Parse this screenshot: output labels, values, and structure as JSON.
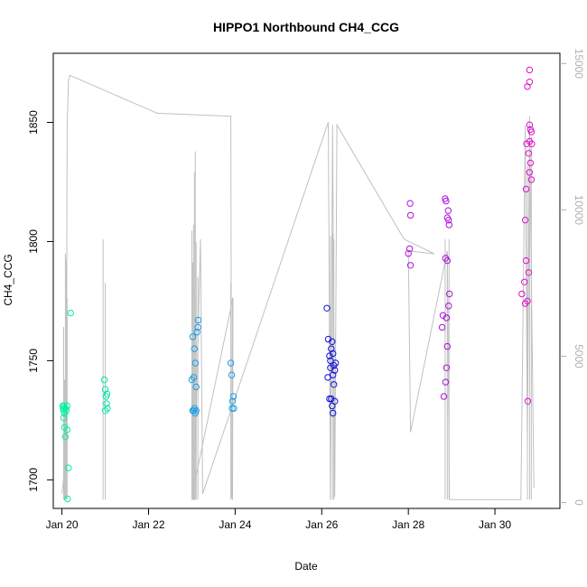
{
  "chart_data": {
    "type": "scatter",
    "title": "HIPPO1 Northbound CH4_CCG",
    "xlabel": "Date",
    "ylabel": "CH4_CCG",
    "xlim": [
      19.8,
      31.5
    ],
    "ylim": [
      1688,
      1879
    ],
    "x_ticks": [
      {
        "value": 20,
        "label": "Jan 20"
      },
      {
        "value": 22,
        "label": "Jan 22"
      },
      {
        "value": 24,
        "label": "Jan 24"
      },
      {
        "value": 26,
        "label": "Jan 26"
      },
      {
        "value": 28,
        "label": "Jan 28"
      },
      {
        "value": 30,
        "label": "Jan 30"
      }
    ],
    "y_ticks": [
      1700,
      1750,
      1800,
      1850
    ],
    "y2_ticks": [
      0,
      5000,
      10000,
      15000
    ],
    "y2_color": "#b0b0b0",
    "y2lim": [
      -200,
      15350
    ],
    "grid": false,
    "legend": "none",
    "points": [
      {
        "x": 20.02,
        "y": 1731,
        "color": "#00f0a0"
      },
      {
        "x": 20.03,
        "y": 1730,
        "color": "#00f0a0"
      },
      {
        "x": 20.04,
        "y": 1729,
        "color": "#00f0a0"
      },
      {
        "x": 20.05,
        "y": 1731,
        "color": "#00f0a0"
      },
      {
        "x": 20.06,
        "y": 1728,
        "color": "#00f0a0"
      },
      {
        "x": 20.08,
        "y": 1730,
        "color": "#00f0a0"
      },
      {
        "x": 20.1,
        "y": 1729,
        "color": "#00f0a0"
      },
      {
        "x": 20.12,
        "y": 1731,
        "color": "#00f0a0"
      },
      {
        "x": 20.04,
        "y": 1726,
        "color": "#00f0a0"
      },
      {
        "x": 20.06,
        "y": 1722,
        "color": "#00f0a0"
      },
      {
        "x": 20.08,
        "y": 1718,
        "color": "#00f0a0"
      },
      {
        "x": 20.12,
        "y": 1721,
        "color": "#00f0a0"
      },
      {
        "x": 20.15,
        "y": 1705,
        "color": "#00f0a0"
      },
      {
        "x": 20.13,
        "y": 1692,
        "color": "#00f0a0"
      },
      {
        "x": 20.2,
        "y": 1770,
        "color": "#00f0a0"
      },
      {
        "x": 20.98,
        "y": 1742,
        "color": "#00e8a8"
      },
      {
        "x": 21.0,
        "y": 1738,
        "color": "#00e8a8"
      },
      {
        "x": 21.02,
        "y": 1735,
        "color": "#00e8a8"
      },
      {
        "x": 21.04,
        "y": 1736,
        "color": "#00e8a8"
      },
      {
        "x": 21.03,
        "y": 1732,
        "color": "#00e8a8"
      },
      {
        "x": 21.0,
        "y": 1729,
        "color": "#00e8a8"
      },
      {
        "x": 21.05,
        "y": 1730,
        "color": "#00e8a8"
      },
      {
        "x": 23.0,
        "y": 1742,
        "color": "#1aa0e8"
      },
      {
        "x": 23.02,
        "y": 1760,
        "color": "#1aa0e8"
      },
      {
        "x": 23.04,
        "y": 1743,
        "color": "#1aa0e8"
      },
      {
        "x": 23.06,
        "y": 1730,
        "color": "#1aa0e8"
      },
      {
        "x": 23.08,
        "y": 1728,
        "color": "#1aa0e8"
      },
      {
        "x": 23.04,
        "y": 1729,
        "color": "#1aa0e8"
      },
      {
        "x": 23.02,
        "y": 1729,
        "color": "#1aa0e8"
      },
      {
        "x": 23.1,
        "y": 1729,
        "color": "#1aa0e8"
      },
      {
        "x": 23.08,
        "y": 1749,
        "color": "#1aa0e8"
      },
      {
        "x": 23.06,
        "y": 1755,
        "color": "#1aa0e8"
      },
      {
        "x": 23.1,
        "y": 1739,
        "color": "#1aa0e8"
      },
      {
        "x": 23.12,
        "y": 1762,
        "color": "#1aa0e8"
      },
      {
        "x": 23.14,
        "y": 1764,
        "color": "#1aa0e8"
      },
      {
        "x": 23.15,
        "y": 1767,
        "color": "#1aa0e8"
      },
      {
        "x": 23.9,
        "y": 1749,
        "color": "#1aa0e8"
      },
      {
        "x": 23.92,
        "y": 1744,
        "color": "#1aa0e8"
      },
      {
        "x": 23.94,
        "y": 1733,
        "color": "#1aa0e8"
      },
      {
        "x": 23.96,
        "y": 1735,
        "color": "#1aa0e8"
      },
      {
        "x": 23.93,
        "y": 1730,
        "color": "#1aa0e8"
      },
      {
        "x": 23.97,
        "y": 1730,
        "color": "#1aa0e8"
      },
      {
        "x": 26.12,
        "y": 1772,
        "color": "#1010d8"
      },
      {
        "x": 26.15,
        "y": 1759,
        "color": "#1010d8"
      },
      {
        "x": 26.18,
        "y": 1752,
        "color": "#1010d8"
      },
      {
        "x": 26.2,
        "y": 1750,
        "color": "#1010d8"
      },
      {
        "x": 26.22,
        "y": 1755,
        "color": "#1010d8"
      },
      {
        "x": 26.24,
        "y": 1758,
        "color": "#1010d8"
      },
      {
        "x": 26.26,
        "y": 1753,
        "color": "#1010d8"
      },
      {
        "x": 26.14,
        "y": 1743,
        "color": "#1010d8"
      },
      {
        "x": 26.2,
        "y": 1747,
        "color": "#1010d8"
      },
      {
        "x": 26.28,
        "y": 1748,
        "color": "#1010d8"
      },
      {
        "x": 26.3,
        "y": 1746,
        "color": "#1010d8"
      },
      {
        "x": 26.32,
        "y": 1749,
        "color": "#1010d8"
      },
      {
        "x": 26.26,
        "y": 1744,
        "color": "#1010d8"
      },
      {
        "x": 26.28,
        "y": 1740,
        "color": "#1010d8"
      },
      {
        "x": 26.18,
        "y": 1734,
        "color": "#1010d8"
      },
      {
        "x": 26.22,
        "y": 1734,
        "color": "#1010d8"
      },
      {
        "x": 26.24,
        "y": 1731,
        "color": "#1010d8"
      },
      {
        "x": 26.26,
        "y": 1728,
        "color": "#1010d8"
      },
      {
        "x": 26.3,
        "y": 1733,
        "color": "#1010d8"
      },
      {
        "x": 28.0,
        "y": 1795,
        "color": "#b010e0"
      },
      {
        "x": 28.04,
        "y": 1816,
        "color": "#b010e0"
      },
      {
        "x": 28.05,
        "y": 1811,
        "color": "#b010e0"
      },
      {
        "x": 28.03,
        "y": 1797,
        "color": "#b010e0"
      },
      {
        "x": 28.05,
        "y": 1790,
        "color": "#b010e0"
      },
      {
        "x": 28.78,
        "y": 1764,
        "color": "#b010e0"
      },
      {
        "x": 28.8,
        "y": 1769,
        "color": "#b010e0"
      },
      {
        "x": 28.82,
        "y": 1735,
        "color": "#b010e0"
      },
      {
        "x": 28.85,
        "y": 1818,
        "color": "#b010e0"
      },
      {
        "x": 28.87,
        "y": 1817,
        "color": "#b010e0"
      },
      {
        "x": 28.9,
        "y": 1810,
        "color": "#b010e0"
      },
      {
        "x": 28.92,
        "y": 1813,
        "color": "#b010e0"
      },
      {
        "x": 28.94,
        "y": 1807,
        "color": "#b010e0"
      },
      {
        "x": 28.93,
        "y": 1809,
        "color": "#b010e0"
      },
      {
        "x": 28.86,
        "y": 1793,
        "color": "#b010e0"
      },
      {
        "x": 28.9,
        "y": 1792,
        "color": "#b010e0"
      },
      {
        "x": 28.95,
        "y": 1778,
        "color": "#b010e0"
      },
      {
        "x": 28.93,
        "y": 1773,
        "color": "#b010e0"
      },
      {
        "x": 28.88,
        "y": 1768,
        "color": "#b010e0"
      },
      {
        "x": 28.9,
        "y": 1756,
        "color": "#b010e0"
      },
      {
        "x": 28.88,
        "y": 1747,
        "color": "#b010e0"
      },
      {
        "x": 28.86,
        "y": 1741,
        "color": "#b010e0"
      },
      {
        "x": 30.62,
        "y": 1778,
        "color": "#e010d0"
      },
      {
        "x": 30.68,
        "y": 1783,
        "color": "#e010d0"
      },
      {
        "x": 30.7,
        "y": 1774,
        "color": "#e010d0"
      },
      {
        "x": 30.75,
        "y": 1775,
        "color": "#e010d0"
      },
      {
        "x": 30.72,
        "y": 1792,
        "color": "#e010d0"
      },
      {
        "x": 30.7,
        "y": 1809,
        "color": "#e010d0"
      },
      {
        "x": 30.72,
        "y": 1822,
        "color": "#e010d0"
      },
      {
        "x": 30.73,
        "y": 1841,
        "color": "#e010d0"
      },
      {
        "x": 30.75,
        "y": 1865,
        "color": "#e010d0"
      },
      {
        "x": 30.78,
        "y": 1787,
        "color": "#e010d0"
      },
      {
        "x": 30.76,
        "y": 1733,
        "color": "#e010d0"
      },
      {
        "x": 30.8,
        "y": 1872,
        "color": "#e010d0"
      },
      {
        "x": 30.8,
        "y": 1867,
        "color": "#e010d0"
      },
      {
        "x": 30.8,
        "y": 1849,
        "color": "#e010d0"
      },
      {
        "x": 30.82,
        "y": 1847,
        "color": "#e010d0"
      },
      {
        "x": 30.84,
        "y": 1846,
        "color": "#e010d0"
      },
      {
        "x": 30.8,
        "y": 1842,
        "color": "#e010d0"
      },
      {
        "x": 30.85,
        "y": 1841,
        "color": "#e010d0"
      },
      {
        "x": 30.78,
        "y": 1837,
        "color": "#e010d0"
      },
      {
        "x": 30.82,
        "y": 1833,
        "color": "#e010d0"
      },
      {
        "x": 30.8,
        "y": 1829,
        "color": "#e010d0"
      },
      {
        "x": 30.84,
        "y": 1826,
        "color": "#e010d0"
      }
    ],
    "altitude_series": {
      "color": "#c0c0c0",
      "axis": "right",
      "x": [
        20.0,
        20.05,
        20.1,
        20.12,
        20.15,
        20.18,
        22.2,
        23.9,
        23.92,
        23.94,
        23.95,
        23.0,
        23.05,
        23.2,
        23.25,
        26.15,
        26.2,
        26.25,
        26.3,
        26.35,
        27.9,
        28.6,
        28.0,
        28.05,
        28.9,
        28.95,
        30.6,
        30.7,
        30.75,
        30.8,
        30.9
      ],
      "y": [
        300,
        1000,
        500,
        12800,
        14400,
        14600,
        13300,
        13200,
        200,
        100,
        7000,
        200,
        100,
        9000,
        300,
        13000,
        100,
        12900,
        200,
        12900,
        9000,
        8500,
        8600,
        2400,
        8600,
        100,
        100,
        12900,
        2000,
        12900,
        500
      ]
    },
    "altitude_spikes": [
      {
        "x": 20.04,
        "y": 6000
      },
      {
        "x": 20.06,
        "y": 4200
      },
      {
        "x": 20.08,
        "y": 8500
      },
      {
        "x": 20.1,
        "y": 8300
      },
      {
        "x": 20.12,
        "y": 7000
      },
      {
        "x": 20.95,
        "y": 9000
      },
      {
        "x": 21.0,
        "y": 7500
      },
      {
        "x": 23.0,
        "y": 9300
      },
      {
        "x": 23.02,
        "y": 8200
      },
      {
        "x": 23.04,
        "y": 9500
      },
      {
        "x": 23.06,
        "y": 11300
      },
      {
        "x": 23.08,
        "y": 12000
      },
      {
        "x": 23.1,
        "y": 8900
      },
      {
        "x": 23.14,
        "y": 7700
      },
      {
        "x": 23.9,
        "y": 7500
      },
      {
        "x": 23.94,
        "y": 7000
      },
      {
        "x": 26.2,
        "y": 9100
      },
      {
        "x": 26.25,
        "y": 9200
      },
      {
        "x": 26.28,
        "y": 9000
      },
      {
        "x": 28.85,
        "y": 9000
      },
      {
        "x": 28.9,
        "y": 8500
      },
      {
        "x": 28.94,
        "y": 9000
      },
      {
        "x": 30.75,
        "y": 11500
      },
      {
        "x": 30.8,
        "y": 13200
      },
      {
        "x": 30.84,
        "y": 12500
      }
    ]
  }
}
